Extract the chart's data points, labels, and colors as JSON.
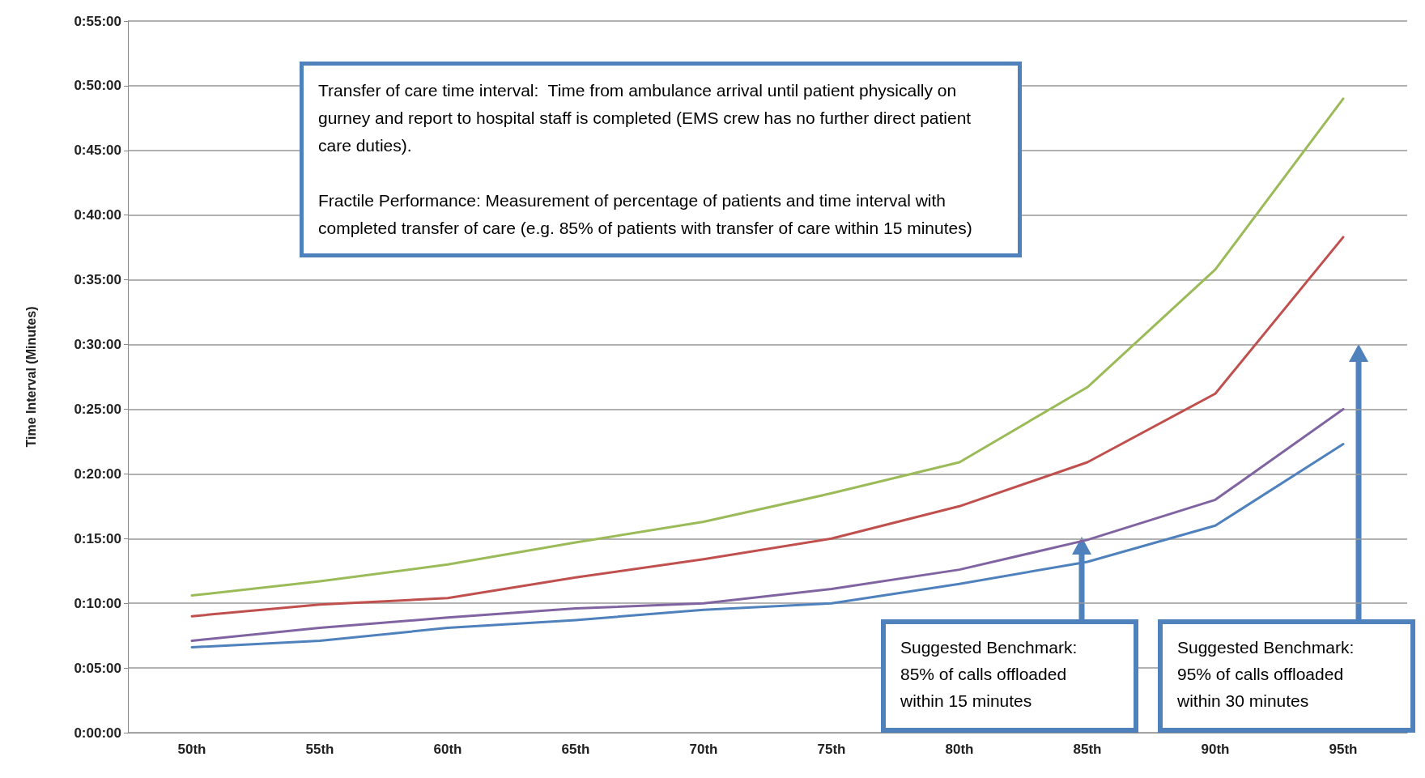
{
  "chart_data": {
    "type": "line",
    "ylabel": "Time Interval (Minutes)",
    "categories": [
      "50th",
      "55th",
      "60th",
      "65th",
      "70th",
      "75th",
      "80th",
      "85th",
      "90th",
      "95th"
    ],
    "series": [
      {
        "color": "#9bbb59",
        "values": [
          10.6,
          11.7,
          13.0,
          14.7,
          16.3,
          18.5,
          20.9,
          26.7,
          35.8,
          49.0
        ]
      },
      {
        "color": "#c0504d",
        "values": [
          9.0,
          9.9,
          10.4,
          12.0,
          13.4,
          15.0,
          17.5,
          20.9,
          26.2,
          38.3
        ]
      },
      {
        "color": "#8064a2",
        "values": [
          7.1,
          8.1,
          8.9,
          9.6,
          10.0,
          11.1,
          12.6,
          14.9,
          18.0,
          25.0
        ]
      },
      {
        "color": "#4f81bd",
        "values": [
          6.6,
          7.1,
          8.1,
          8.7,
          9.5,
          10.0,
          11.5,
          13.2,
          16.0,
          22.3
        ]
      }
    ],
    "ylim": [
      0,
      55
    ],
    "yticks": [
      {
        "value": 0,
        "label": "0:00:00"
      },
      {
        "value": 5,
        "label": "0:05:00"
      },
      {
        "value": 10,
        "label": "0:10:00"
      },
      {
        "value": 15,
        "label": "0:15:00"
      },
      {
        "value": 20,
        "label": "0:20:00"
      },
      {
        "value": 25,
        "label": "0:25:00"
      },
      {
        "value": 30,
        "label": "0:30:00"
      },
      {
        "value": 35,
        "label": "0:35:00"
      },
      {
        "value": 40,
        "label": "0:40:00"
      },
      {
        "value": 45,
        "label": "0:45:00"
      },
      {
        "value": 50,
        "label": "0:50:00"
      },
      {
        "value": 55,
        "label": "0:55:00"
      }
    ],
    "grid": "y",
    "marker": "none",
    "line_style": "solid",
    "annotations": [
      "Transfer of care time interval:  Time from ambulance arrival until patient physically on gurney and report to hospital staff is completed (EMS crew has no further direct patient care duties).\n\nFractile Performance: Measurement of percentage of patients and time interval with completed transfer of care (e.g. 85% of patients with transfer of care within 15 minutes)",
      "Suggested Benchmark:\n85% of calls offloaded\nwithin 15 minutes",
      "Suggested Benchmark:\n95% of calls offloaded\nwithin 30 minutes"
    ]
  }
}
